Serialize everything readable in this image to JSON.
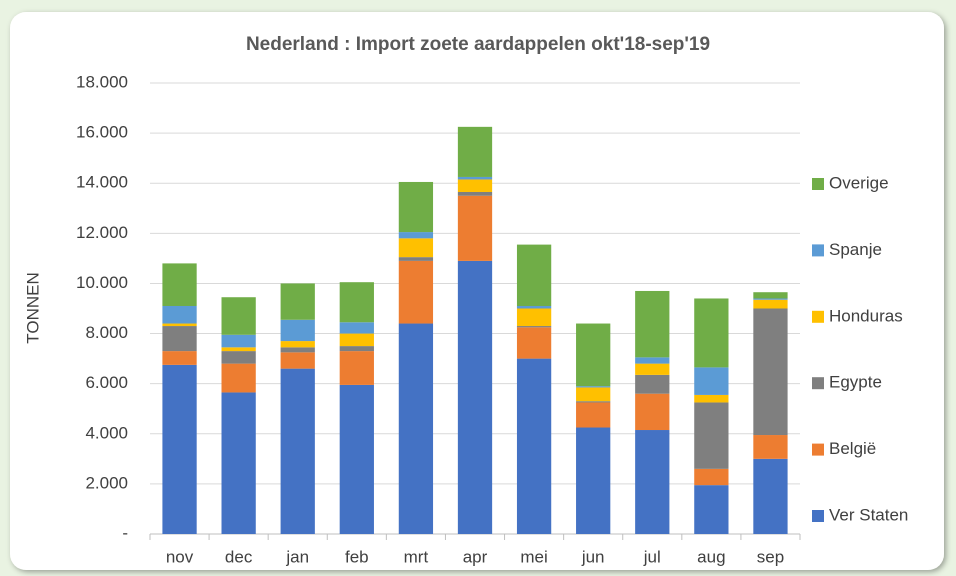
{
  "chart_data": {
    "type": "stacked_bar",
    "title": "Nederland : Import zoete aardappelen okt'18-sep'19",
    "y_label": "TONNEN",
    "categories": [
      "nov",
      "dec",
      "jan",
      "feb",
      "mrt",
      "apr",
      "mei",
      "jun",
      "jul",
      "aug",
      "sep"
    ],
    "series": [
      {
        "name": "Ver Staten",
        "color": "#4472c4",
        "values": [
          6750,
          5650,
          6600,
          5950,
          8400,
          10900,
          7000,
          4250,
          4150,
          1950,
          3000
        ]
      },
      {
        "name": "België",
        "color": "#ed7d31",
        "values": [
          550,
          1150,
          650,
          1350,
          2500,
          2600,
          1250,
          1000,
          1450,
          650,
          950
        ]
      },
      {
        "name": "Egypte",
        "color": "#7f7f7f",
        "values": [
          1000,
          500,
          200,
          200,
          150,
          150,
          50,
          50,
          750,
          2650,
          5050
        ]
      },
      {
        "name": "Honduras",
        "color": "#ffc000",
        "values": [
          100,
          150,
          250,
          500,
          750,
          500,
          700,
          550,
          450,
          300,
          350
        ]
      },
      {
        "name": "Spanje",
        "color": "#5b9bd5",
        "values": [
          700,
          500,
          850,
          450,
          250,
          100,
          100,
          50,
          250,
          1100,
          50
        ]
      },
      {
        "name": "Overige",
        "color": "#70ad47",
        "values": [
          1700,
          1500,
          1450,
          1600,
          2000,
          2000,
          2450,
          2500,
          2650,
          2750,
          250
        ]
      }
    ],
    "ylim": [
      0,
      18000
    ],
    "yticks": [
      {
        "value": 0,
        "label": "-"
      },
      {
        "value": 2000,
        "label": "2.000"
      },
      {
        "value": 4000,
        "label": "4.000"
      },
      {
        "value": 6000,
        "label": "6.000"
      },
      {
        "value": 8000,
        "label": "8.000"
      },
      {
        "value": 10000,
        "label": "10.000"
      },
      {
        "value": 12000,
        "label": "12.000"
      },
      {
        "value": 14000,
        "label": "14.000"
      },
      {
        "value": 16000,
        "label": "16.000"
      },
      {
        "value": 18000,
        "label": "18.000"
      }
    ],
    "grid": true,
    "legend": "right"
  }
}
